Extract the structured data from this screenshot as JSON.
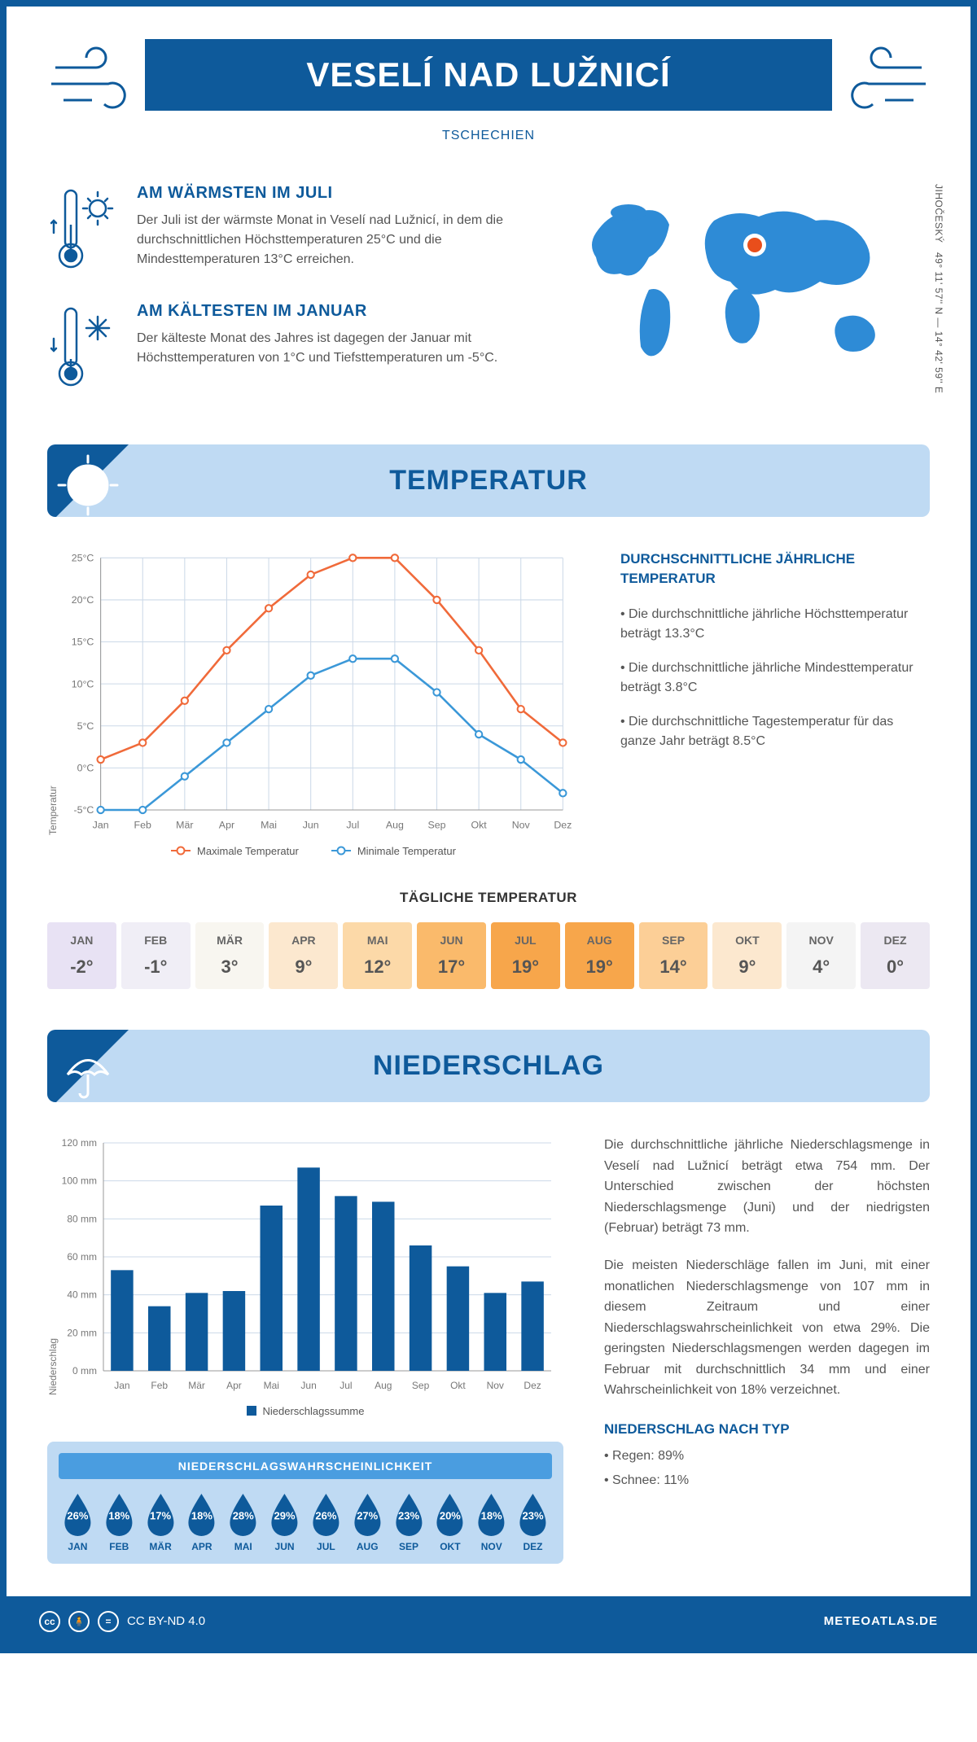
{
  "header": {
    "title": "VESELÍ NAD LUŽNICÍ",
    "country": "TSCHECHIEN",
    "coords": "49° 11' 57'' N — 14° 42' 59'' E",
    "region": "JIHOČESKÝ"
  },
  "colors": {
    "primary": "#0e5a9b",
    "light_blue": "#bfdaf3",
    "mid_blue": "#4a9de0",
    "orange_line": "#f06a3a",
    "blue_line": "#3b98d8",
    "grid": "#ccd9e8",
    "text": "#555555"
  },
  "warmest": {
    "title": "AM WÄRMSTEN IM JULI",
    "text": "Der Juli ist der wärmste Monat in Veselí nad Lužnicí, in dem die durchschnittlichen Höchsttemperaturen 25°C und die Mindesttemperaturen 13°C erreichen."
  },
  "coldest": {
    "title": "AM KÄLTESTEN IM JANUAR",
    "text": "Der kälteste Monat des Jahres ist dagegen der Januar mit Höchsttemperaturen von 1°C und Tiefsttemperaturen um -5°C."
  },
  "temp_section": {
    "heading": "TEMPERATUR",
    "aside_title": "DURCHSCHNITTLICHE JÄHRLICHE TEMPERATUR",
    "bullet1": "• Die durchschnittliche jährliche Höchsttemperatur beträgt 13.3°C",
    "bullet2": "• Die durchschnittliche jährliche Mindesttemperatur beträgt 3.8°C",
    "bullet3": "• Die durchschnittliche Tagestemperatur für das ganze Jahr beträgt 8.5°C",
    "chart": {
      "type": "line",
      "months": [
        "Jan",
        "Feb",
        "Mär",
        "Apr",
        "Mai",
        "Jun",
        "Jul",
        "Aug",
        "Sep",
        "Okt",
        "Nov",
        "Dez"
      ],
      "max": [
        1,
        3,
        8,
        14,
        19,
        23,
        25,
        25,
        20,
        14,
        7,
        3
      ],
      "min": [
        -5,
        -5,
        -1,
        3,
        7,
        11,
        13,
        13,
        9,
        4,
        1,
        -3
      ],
      "yticks": [
        -5,
        0,
        5,
        10,
        15,
        20,
        25
      ],
      "ylim": [
        -5,
        25
      ],
      "max_color": "#f06a3a",
      "min_color": "#3b98d8",
      "legend_max": "Maximale Temperatur",
      "legend_min": "Minimale Temperatur",
      "y_label": "Temperatur"
    },
    "daily": {
      "title": "TÄGLICHE TEMPERATUR",
      "months": [
        "JAN",
        "FEB",
        "MÄR",
        "APR",
        "MAI",
        "JUN",
        "JUL",
        "AUG",
        "SEP",
        "OKT",
        "NOV",
        "DEZ"
      ],
      "values": [
        "-2°",
        "-1°",
        "3°",
        "9°",
        "12°",
        "17°",
        "19°",
        "19°",
        "14°",
        "9°",
        "4°",
        "0°"
      ],
      "bg_colors": [
        "#e8e2f4",
        "#f0eef6",
        "#f8f6f0",
        "#fce8cf",
        "#fcd9a8",
        "#faba6b",
        "#f7a64b",
        "#f7a64b",
        "#fccf97",
        "#fce8cf",
        "#f4f4f4",
        "#ece8f2"
      ]
    }
  },
  "precip_section": {
    "heading": "NIEDERSCHLAG",
    "chart": {
      "type": "bar",
      "months": [
        "Jan",
        "Feb",
        "Mär",
        "Apr",
        "Mai",
        "Jun",
        "Jul",
        "Aug",
        "Sep",
        "Okt",
        "Nov",
        "Dez"
      ],
      "values": [
        53,
        34,
        41,
        42,
        87,
        107,
        92,
        89,
        66,
        55,
        41,
        47
      ],
      "yticks": [
        0,
        20,
        40,
        60,
        80,
        100,
        120
      ],
      "ylim": [
        0,
        120
      ],
      "bar_color": "#0e5a9b",
      "y_label": "Niederschlag",
      "legend": "Niederschlagssumme"
    },
    "para1": "Die durchschnittliche jährliche Niederschlagsmenge in Veselí nad Lužnicí beträgt etwa 754 mm. Der Unterschied zwischen der höchsten Niederschlagsmenge (Juni) und der niedrigsten (Februar) beträgt 73 mm.",
    "para2": "Die meisten Niederschläge fallen im Juni, mit einer monatlichen Niederschlagsmenge von 107 mm in diesem Zeitraum und einer Niederschlagswahrscheinlichkeit von etwa 29%. Die geringsten Niederschlagsmengen werden dagegen im Februar mit durchschnittlich 34 mm und einer Wahrscheinlichkeit von 18% verzeichnet.",
    "type_title": "NIEDERSCHLAG NACH TYP",
    "type1": "• Regen: 89%",
    "type2": "• Schnee: 11%",
    "probability": {
      "title": "NIEDERSCHLAGSWAHRSCHEINLICHKEIT",
      "months": [
        "JAN",
        "FEB",
        "MÄR",
        "APR",
        "MAI",
        "JUN",
        "JUL",
        "AUG",
        "SEP",
        "OKT",
        "NOV",
        "DEZ"
      ],
      "pct": [
        "26%",
        "18%",
        "17%",
        "18%",
        "28%",
        "29%",
        "26%",
        "27%",
        "23%",
        "20%",
        "18%",
        "23%"
      ]
    }
  },
  "footer": {
    "license": "CC BY-ND 4.0",
    "brand": "METEOATLAS.DE"
  }
}
